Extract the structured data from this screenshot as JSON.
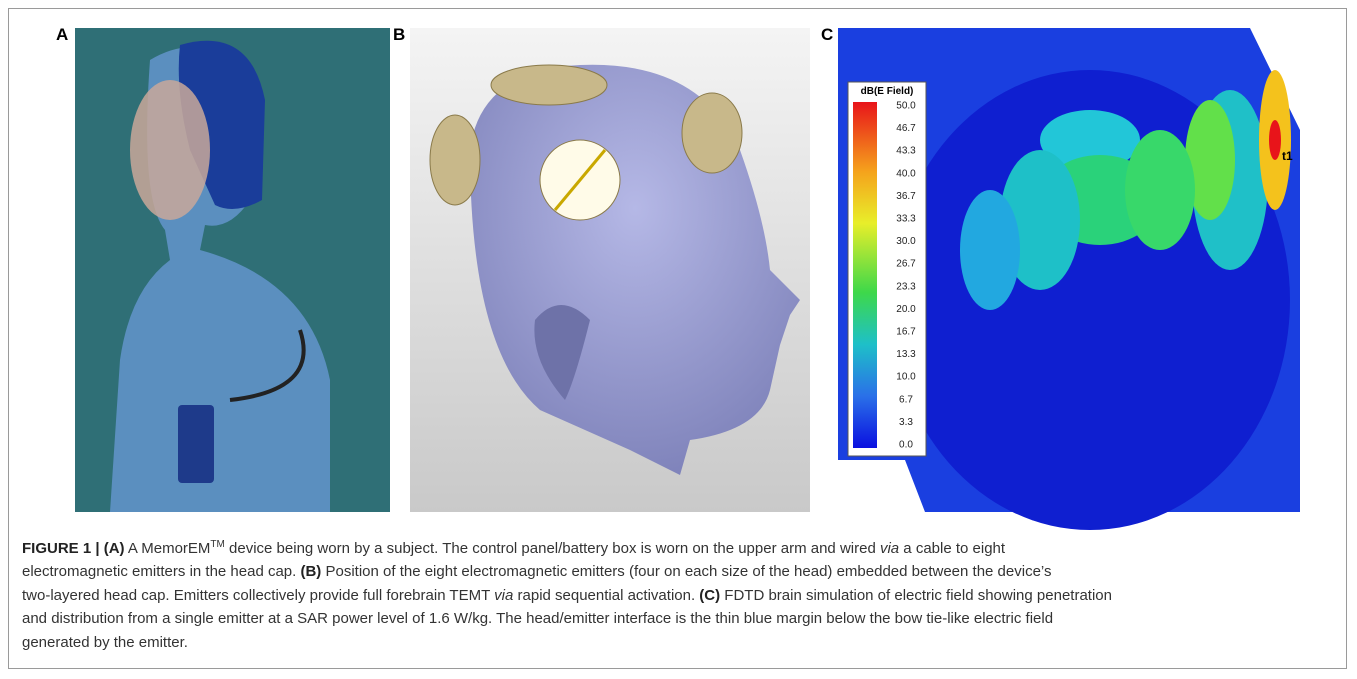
{
  "panels": [
    {
      "label": "A"
    },
    {
      "label": "B"
    },
    {
      "label": "C",
      "colorbar": {
        "title": "dB(E Field)",
        "ticks": [
          "50.0",
          "46.7",
          "43.3",
          "40.0",
          "36.7",
          "33.3",
          "30.0",
          "26.7",
          "23.3",
          "20.0",
          "16.7",
          "13.3",
          "10.0",
          "6.7",
          "3.3",
          "0.0"
        ]
      },
      "annotation": "t1"
    }
  ],
  "caption": {
    "lines": [
      [
        "FIGURE 1 | ",
        "(A)",
        " A MemorEM",
        "TM",
        " device being worn by a subject. The control panel/battery box is worn on the upper arm and wired ",
        "via",
        " a cable to eight"
      ],
      [
        "electromagnetic emitters in the head cap. ",
        "(B)",
        " Position of the eight electromagnetic emitters (four on each size of the head) embedded between the device’s"
      ],
      [
        "two-layered head cap. Emitters collectively provide full forebrain TEMT ",
        "via",
        " rapid sequential activation. ",
        "(C)",
        " FDTD brain simulation of electric field showing penetration"
      ],
      [
        "and distribution from a single emitter at a SAR power level of 1.6 W/kg. The head/emitter interface is the thin blue margin below the bow tie-like electric field"
      ],
      [
        "generated by the emitter."
      ]
    ]
  }
}
